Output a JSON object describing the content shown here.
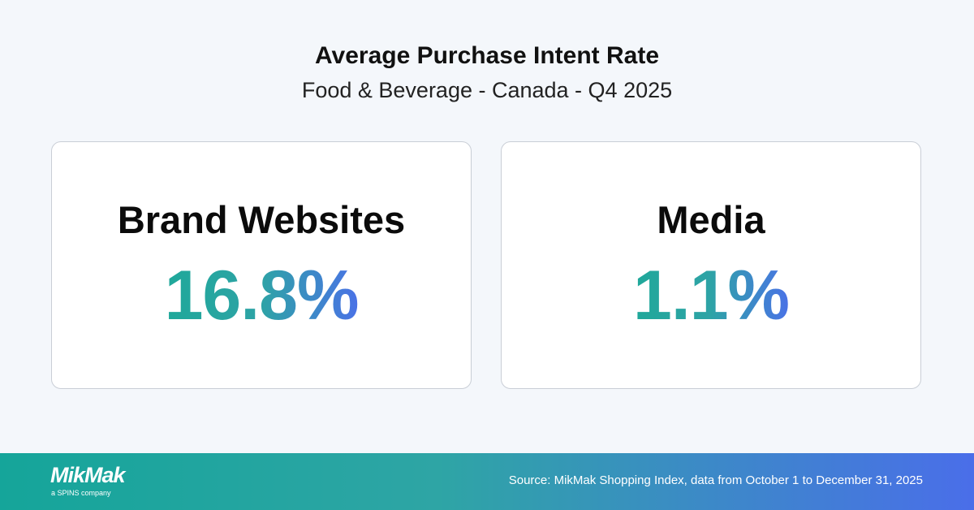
{
  "header": {
    "title": "Average Purchase Intent Rate",
    "subtitle": "Food & Beverage - Canada - Q4 2025"
  },
  "cards": [
    {
      "label": "Brand Websites",
      "value": "16.8%"
    },
    {
      "label": "Media",
      "value": "1.1%"
    }
  ],
  "footer": {
    "logo": "MikMak",
    "tagline": "a SPINS company",
    "source": "Source: MikMak Shopping Index, data from October 1 to December 31, 2025"
  }
}
